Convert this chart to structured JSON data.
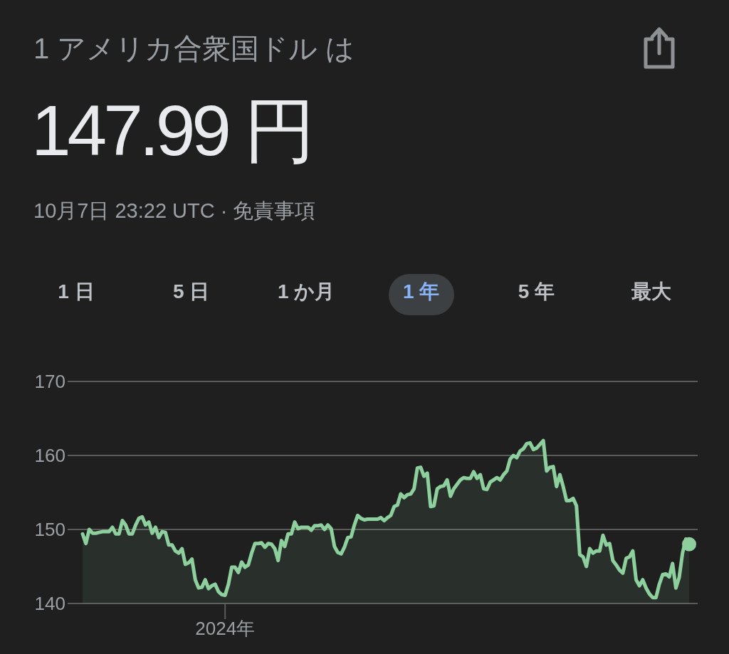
{
  "chart_data": {
    "type": "area",
    "title": "1 アメリカ合衆国ドル は",
    "subtitle": "147.99 円",
    "annotations": [
      "10月7日 23:22 UTC · 免責事項",
      "1 日",
      "5 日",
      "1 か月",
      "1 年",
      "5 年",
      "最大"
    ],
    "categories": [
      null,
      null,
      null,
      null,
      null,
      null,
      null,
      null,
      null,
      null,
      null,
      null,
      null,
      null,
      null,
      null,
      null,
      null,
      null,
      null,
      null,
      null,
      null,
      null,
      null,
      null,
      null,
      null,
      null,
      null,
      null,
      null,
      null,
      null,
      null,
      null,
      null,
      null,
      null,
      null,
      null,
      null,
      null,
      "2024年",
      null,
      null,
      null,
      null,
      null,
      null,
      null,
      null,
      null,
      null,
      null,
      null,
      null,
      null,
      null,
      null,
      null,
      null,
      null,
      null,
      null,
      null,
      null,
      null,
      null,
      null,
      null,
      null,
      null,
      null,
      null,
      null,
      null,
      null,
      null,
      null,
      null,
      null,
      null,
      null,
      null,
      null,
      null,
      null,
      null,
      null,
      null,
      null,
      null,
      null,
      null,
      null,
      null,
      null,
      null,
      null,
      null,
      null,
      null,
      null,
      null,
      null,
      null,
      null,
      null,
      null,
      null,
      null,
      null,
      null,
      null,
      null,
      null,
      null,
      null,
      null,
      null,
      null,
      null,
      null,
      null,
      null,
      null,
      null,
      null,
      null,
      null,
      null,
      null,
      null,
      null,
      null,
      null,
      null,
      null,
      null,
      null,
      null,
      null,
      null,
      null,
      null,
      null,
      null,
      null,
      null,
      null,
      null,
      null,
      null,
      null,
      null,
      null,
      null,
      null,
      null,
      null,
      null,
      null,
      null,
      null,
      null,
      null,
      null,
      null,
      null,
      null,
      null,
      null,
      null,
      null,
      null,
      null,
      null,
      null,
      null,
      null,
      null,
      null,
      null
    ],
    "series": [
      {
        "color": "#8ecf9e",
        "values": [
          149.4,
          148.1,
          150.0,
          149.5,
          149.5,
          149.6,
          149.7,
          149.7,
          149.7,
          150.3,
          149.4,
          149.4,
          151.2,
          150.6,
          149.4,
          149.4,
          150.6,
          151.5,
          151.7,
          150.6,
          151.0,
          149.5,
          150.3,
          148.9,
          149.7,
          149.6,
          147.9,
          147.9,
          147.1,
          146.8,
          147.4,
          145.3,
          145.5,
          146.0,
          143.2,
          142.1,
          142.2,
          143.2,
          142.0,
          142.4,
          142.6,
          141.6,
          141.2,
          141.1,
          142.6,
          144.9,
          144.9,
          144.2,
          145.6,
          144.9,
          145.2,
          146.8,
          148.1,
          148.1,
          148.2,
          147.6,
          148.1,
          148.0,
          147.4,
          145.8,
          148.5,
          147.7,
          149.4,
          149.4,
          151.0,
          150.1,
          150.3,
          150.3,
          150.3,
          149.9,
          150.5,
          150.5,
          150.6,
          150.0,
          150.6,
          150.1,
          147.7,
          146.9,
          146.7,
          147.6,
          148.9,
          149.0,
          150.6,
          151.9,
          151.5,
          151.3,
          151.4,
          151.4,
          151.4,
          151.4,
          151.6,
          151.2,
          151.6,
          151.9,
          153.1,
          153.3,
          154.8,
          154.3,
          154.7,
          154.8,
          155.5,
          158.3,
          158.4,
          157.2,
          157.6,
          153.1,
          153.2,
          155.5,
          155.8,
          155.9,
          156.7,
          154.5,
          155.5,
          156.1,
          156.7,
          157.0,
          156.9,
          156.9,
          157.8,
          156.9,
          157.4,
          155.5,
          155.4,
          156.4,
          156.7,
          157.0,
          156.7,
          157.4,
          157.9,
          159.5,
          160.0,
          159.7,
          160.6,
          160.9,
          161.6,
          161.7,
          160.8,
          161.0,
          161.5,
          162.0,
          157.9,
          158.4,
          158.5,
          155.8,
          157.4,
          155.8,
          153.9,
          153.9,
          154.2,
          153.2,
          146.6,
          146.3,
          145.0,
          147.4,
          146.8,
          147.1,
          147.1,
          149.2,
          147.9,
          148.1,
          145.8,
          145.2,
          144.5,
          144.1,
          146.1,
          146.3,
          147.1,
          143.2,
          142.4,
          143.2,
          142.1,
          141.3,
          140.8,
          140.8,
          142.6,
          143.9,
          144.0,
          143.6,
          145.4,
          142.1,
          143.5,
          146.8,
          148.7,
          148.0
        ]
      },
      {
        "type": "scatter",
        "color": "#8ecf9e",
        "marker": "circle",
        "values": [
          null,
          null,
          null,
          null,
          null,
          null,
          null,
          null,
          null,
          null,
          null,
          null,
          null,
          null,
          null,
          null,
          null,
          null,
          null,
          null,
          null,
          null,
          null,
          null,
          null,
          null,
          null,
          null,
          null,
          null,
          null,
          null,
          null,
          null,
          null,
          null,
          null,
          null,
          null,
          null,
          null,
          null,
          null,
          null,
          null,
          null,
          null,
          null,
          null,
          null,
          null,
          null,
          null,
          null,
          null,
          null,
          null,
          null,
          null,
          null,
          null,
          null,
          null,
          null,
          null,
          null,
          null,
          null,
          null,
          null,
          null,
          null,
          null,
          null,
          null,
          null,
          null,
          null,
          null,
          null,
          null,
          null,
          null,
          null,
          null,
          null,
          null,
          null,
          null,
          null,
          null,
          null,
          null,
          null,
          null,
          null,
          null,
          null,
          null,
          null,
          null,
          null,
          null,
          null,
          null,
          null,
          null,
          null,
          null,
          null,
          null,
          null,
          null,
          null,
          null,
          null,
          null,
          null,
          null,
          null,
          null,
          null,
          null,
          null,
          null,
          null,
          null,
          null,
          null,
          null,
          null,
          null,
          null,
          null,
          null,
          null,
          null,
          null,
          null,
          null,
          null,
          null,
          null,
          null,
          null,
          null,
          null,
          null,
          null,
          null,
          null,
          null,
          null,
          null,
          null,
          null,
          null,
          null,
          null,
          null,
          null,
          null,
          null,
          null,
          null,
          null,
          null,
          null,
          null,
          null,
          null,
          null,
          null,
          null,
          null,
          null,
          null,
          null,
          null,
          null,
          null,
          null,
          null,
          148.0
        ]
      }
    ],
    "ylim": [
      140,
      170
    ],
    "yticks": [
      140,
      150,
      160,
      170
    ],
    "grid": "y"
  }
}
